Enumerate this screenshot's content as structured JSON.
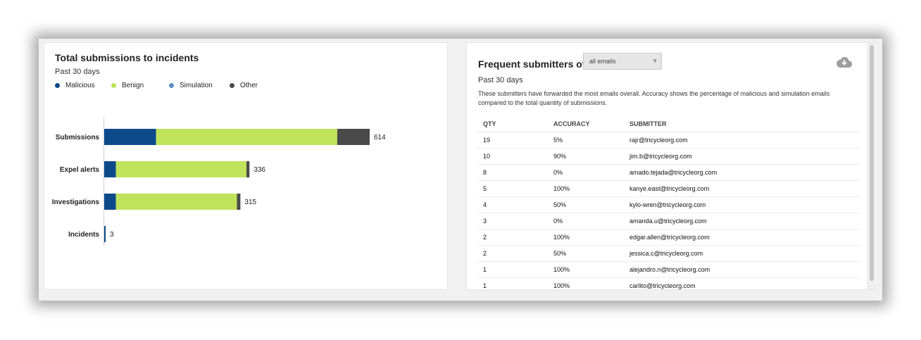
{
  "left_panel": {
    "title": "Total submissions to incidents",
    "subtitle": "Past 30 days",
    "legend": [
      {
        "label": "Malicious",
        "color": "#0d4a8c"
      },
      {
        "label": "Benign",
        "color": "#bfe35a"
      },
      {
        "label": "Simulation",
        "color": "#5f8fc6"
      },
      {
        "label": "Other",
        "color": "#4a4a4a"
      }
    ]
  },
  "chart_data": {
    "type": "bar",
    "orientation": "horizontal",
    "stacked": true,
    "categories": [
      "Submissions",
      "Expel alerts",
      "Investigations",
      "Incidents"
    ],
    "series": [
      {
        "name": "Malicious",
        "values": [
          120,
          27,
          27,
          3
        ]
      },
      {
        "name": "Benign",
        "values": [
          419,
          302,
          280,
          0
        ]
      },
      {
        "name": "Simulation",
        "values": [
          0,
          0,
          0,
          0
        ]
      },
      {
        "name": "Other",
        "values": [
          75,
          7,
          8,
          0
        ]
      }
    ],
    "totals": [
      "614",
      "336",
      "315",
      "3"
    ],
    "legend_position": "top-left",
    "grid": false
  },
  "right_panel": {
    "title": "Frequent submitters of",
    "filter": {
      "selected": "all emails"
    },
    "download_icon": "cloud-download-icon",
    "subtitle": "Past 30 days",
    "description": "These submitters have forwarded the most emails overall. Accuracy shows the percentage of malicious and simulation emails compared to the total quantity of submissions.",
    "table": {
      "headers": {
        "qty": "QTY",
        "accuracy": "ACCURACY",
        "submitter": "SUBMITTER"
      },
      "rows": [
        {
          "qty": "19",
          "accuracy": "5%",
          "submitter": "rajr@tricycleorg.com"
        },
        {
          "qty": "10",
          "accuracy": "90%",
          "submitter": "jim.b@tricycleorg.com"
        },
        {
          "qty": "8",
          "accuracy": "0%",
          "submitter": "amado.tejada@tricycleorg.com"
        },
        {
          "qty": "5",
          "accuracy": "100%",
          "submitter": "kanye.east@tricycleorg.com"
        },
        {
          "qty": "4",
          "accuracy": "50%",
          "submitter": "kylo-wren@tricycleorg.com"
        },
        {
          "qty": "3",
          "accuracy": "0%",
          "submitter": "amanda.u@tricycleorg.com"
        },
        {
          "qty": "2",
          "accuracy": "100%",
          "submitter": "edgar.allen@tricycleorg.com"
        },
        {
          "qty": "2",
          "accuracy": "50%",
          "submitter": "jessica.c@tricycleorg.com"
        },
        {
          "qty": "1",
          "accuracy": "100%",
          "submitter": "alejandro.n@tricycleorg.com"
        },
        {
          "qty": "1",
          "accuracy": "100%",
          "submitter": "carlito@tricycleorg.com"
        }
      ]
    }
  }
}
